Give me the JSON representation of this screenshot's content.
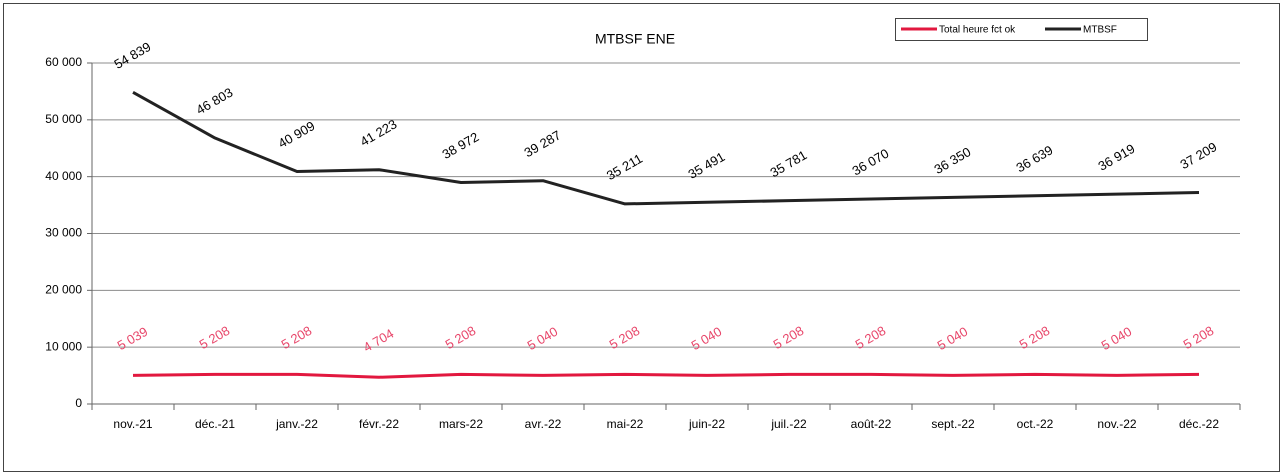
{
  "chart_data": {
    "type": "line",
    "title": "MTBSF ENE",
    "categories": [
      "nov.-21",
      "déc.-21",
      "janv.-22",
      "févr.-22",
      "mars-22",
      "avr.-22",
      "mai-22",
      "juin-22",
      "juil.-22",
      "août-22",
      "sept.-22",
      "oct.-22",
      "nov.-22",
      "déc.-22"
    ],
    "series": [
      {
        "name": "Total heure fct ok",
        "color": "#e2183f",
        "label_color": "#e8466a",
        "values": [
          5039,
          5208,
          5208,
          4704,
          5208,
          5040,
          5208,
          5040,
          5208,
          5208,
          5040,
          5208,
          5040,
          5208
        ],
        "value_labels": [
          "5 039",
          "5 208",
          "5 208",
          "4 704",
          "5 208",
          "5 040",
          "5 208",
          "5 040",
          "5 208",
          "5 208",
          "5 040",
          "5 208",
          "5 040",
          "5 208"
        ]
      },
      {
        "name": "MTBSF",
        "color": "#222222",
        "label_color": "#000000",
        "values": [
          54839,
          46803,
          40909,
          41223,
          38972,
          39287,
          35211,
          35491,
          35781,
          36070,
          36350,
          36639,
          36919,
          37209
        ],
        "value_labels": [
          "54 839",
          "46 803",
          "40 909",
          "41 223",
          "38 972",
          "39 287",
          "35 211",
          "35 491",
          "35 781",
          "36 070",
          "36 350",
          "36 639",
          "36 919",
          "37 209"
        ]
      }
    ],
    "ylim": [
      0,
      60000
    ],
    "yticks": [
      0,
      {
        "value": 10000,
        "label": "10 000"
      },
      {
        "value": 20000,
        "label": "20 000"
      },
      {
        "value": 30000,
        "label": "30 000"
      },
      {
        "value": 40000,
        "label": "40 000"
      },
      {
        "value": 50000,
        "label": "50 000"
      },
      {
        "value": 60000,
        "label": "60 000"
      }
    ],
    "grid": true,
    "legend": "top-right"
  }
}
